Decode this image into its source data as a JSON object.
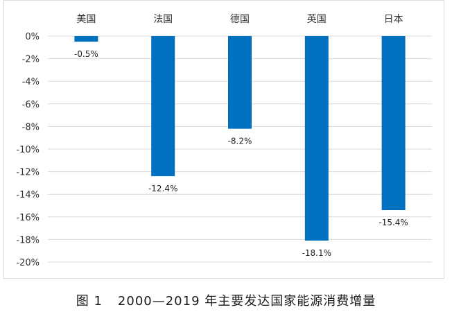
{
  "caption": {
    "figure_no": "图 1",
    "text": "2000—2019 年主要发达国家能源消费增量"
  },
  "chart_data": {
    "type": "bar",
    "categories": [
      "美国",
      "法国",
      "德国",
      "英国",
      "日本"
    ],
    "values": [
      -0.5,
      -12.4,
      -8.2,
      -18.1,
      -15.4
    ],
    "data_labels": [
      "-0.5%",
      "-12.4%",
      "-8.2%",
      "-18.1%",
      "-15.4%"
    ],
    "ylim": [
      -20,
      0
    ],
    "yticks": [
      0,
      -2,
      -4,
      -6,
      -8,
      -10,
      -12,
      -14,
      -16,
      -18,
      -20
    ],
    "ytick_labels": [
      "0%",
      "-2%",
      "-4%",
      "-6%",
      "-8%",
      "-10%",
      "-12%",
      "-14%",
      "-16%",
      "-18%",
      "-20%"
    ],
    "category_axis_position": "top",
    "grid": true,
    "bar_color": "#0070C0"
  }
}
